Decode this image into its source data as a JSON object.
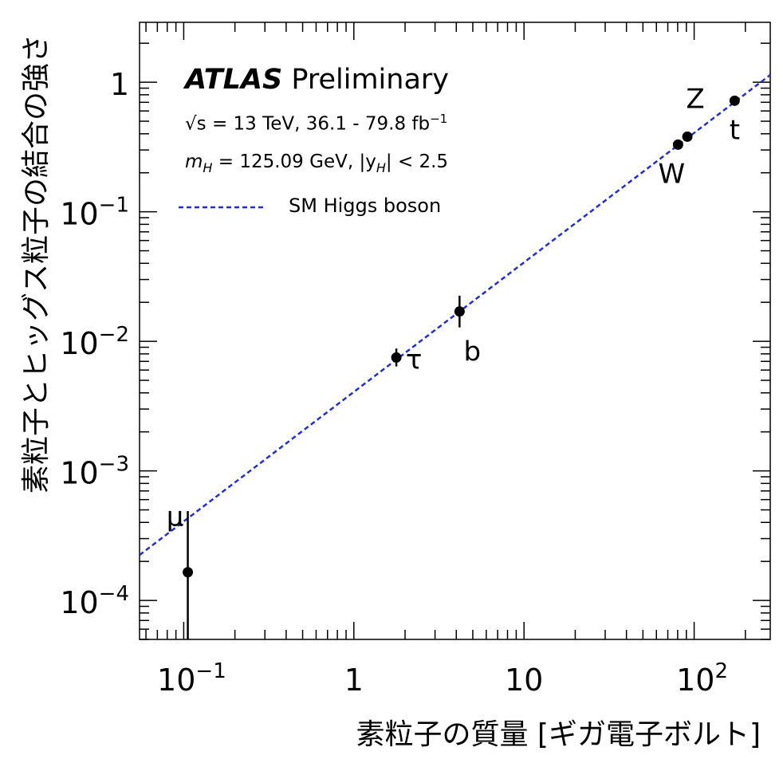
{
  "chart_data": {
    "type": "scatter",
    "title": "",
    "xlabel": "素粒子の質量 [ギガ電子ボルト]",
    "ylabel": "素粒子とヒッグス粒子の結合の強さ",
    "xscale": "log",
    "yscale": "log",
    "xlim": [
      0.055,
      280
    ],
    "ylim": [
      5e-05,
      2.9
    ],
    "x_ticks": [
      {
        "value": 0.1,
        "base": "10",
        "exp": "−1"
      },
      {
        "value": 1,
        "base": "1",
        "exp": ""
      },
      {
        "value": 10,
        "base": "10",
        "exp": ""
      },
      {
        "value": 100,
        "base": "10",
        "exp": "2"
      }
    ],
    "y_ticks": [
      {
        "value": 0.0001,
        "base": "10",
        "exp": "−4"
      },
      {
        "value": 0.001,
        "base": "10",
        "exp": "−3"
      },
      {
        "value": 0.01,
        "base": "10",
        "exp": "−2"
      },
      {
        "value": 0.1,
        "base": "10",
        "exp": "−1"
      },
      {
        "value": 1,
        "base": "1",
        "exp": ""
      }
    ],
    "points": [
      {
        "label": "μ",
        "x": 0.1057,
        "y": 0.000165,
        "ylow": 5e-05,
        "yhigh": 0.00049
      },
      {
        "label": "τ",
        "x": 1.777,
        "y": 0.0075,
        "ylow": 0.0064,
        "yhigh": 0.0088
      },
      {
        "label": "b",
        "x": 4.18,
        "y": 0.017,
        "ylow": 0.0128,
        "yhigh": 0.0225
      },
      {
        "label": "W",
        "x": 80.4,
        "y": 0.33,
        "ylow": 0.318,
        "yhigh": 0.342
      },
      {
        "label": "Z",
        "x": 91.2,
        "y": 0.38,
        "ylow": 0.367,
        "yhigh": 0.393
      },
      {
        "label": "t",
        "x": 173,
        "y": 0.72,
        "ylow": 0.68,
        "yhigh": 0.76
      }
    ],
    "reference_line": {
      "name": "SM Higgs boson",
      "style": "dashed",
      "color": "#1f2ed6",
      "x": [
        0.055,
        280
      ],
      "y": [
        0.000224,
        1.138
      ]
    },
    "legend": {
      "position": "top-left",
      "entries": [
        "SM Higgs boson"
      ]
    },
    "annotations": {
      "experiment": "ATLAS",
      "status": "Preliminary",
      "energy_line": "√s = 13 TeV, 36.1 - 79.8 fb",
      "energy_sup": "−1",
      "mass_prefix": "m",
      "mass_sub": "H",
      "mass_mid": " = 125.09 GeV, |y",
      "mass_sub2": "H",
      "mass_suffix": "| < 2.5"
    },
    "grid": false
  },
  "colors": {
    "points": "#000000",
    "reference": "#1f2ed6",
    "axes": "#000000"
  }
}
